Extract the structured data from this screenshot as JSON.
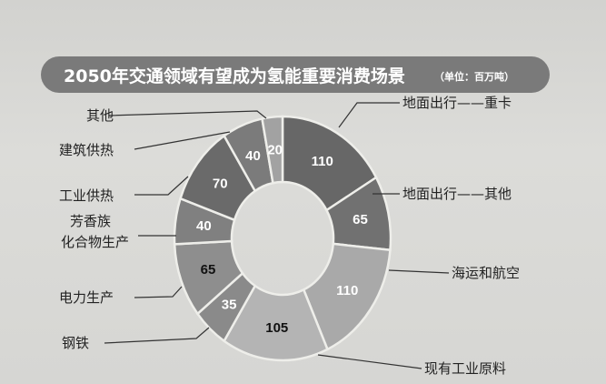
{
  "chart_data": {
    "type": "pie",
    "donut": true,
    "title": "2050年交通领域有望成为氢能重要消费场景",
    "unit": "（单位：百万吨）",
    "slices": [
      {
        "label": "地面出行——重卡",
        "value": 110,
        "color": "#676767",
        "text_color": "#ffffff"
      },
      {
        "label": "地面出行——其他",
        "value": 65,
        "color": "#717171",
        "text_color": "#ffffff"
      },
      {
        "label": "海运和航空",
        "value": 110,
        "color": "#a9a9a9",
        "text_color": "#ffffff"
      },
      {
        "label": "现有工业原料",
        "value": 105,
        "color": "#b4b4b4",
        "text_color": "#111111"
      },
      {
        "label": "钢铁",
        "value": 35,
        "color": "#8a8a8a",
        "text_color": "#ffffff"
      },
      {
        "label": "电力生产",
        "value": 65,
        "color": "#8e8e8e",
        "text_color": "#111111"
      },
      {
        "label": "芳香族化合物生产",
        "value": 40,
        "color": "#808080",
        "text_color": "#ffffff"
      },
      {
        "label": "工业供热",
        "value": 70,
        "color": "#6a6a6a",
        "text_color": "#ffffff"
      },
      {
        "label": "建筑供热",
        "value": 40,
        "color": "#7b7b7b",
        "text_color": "#ffffff"
      },
      {
        "label": "其他",
        "value": 20,
        "color": "#a2a2a2",
        "text_color": "#ffffff"
      }
    ],
    "start_angle": "12 o'clock",
    "direction": "clockwise"
  },
  "title_bar_color": "#7a7a7a"
}
